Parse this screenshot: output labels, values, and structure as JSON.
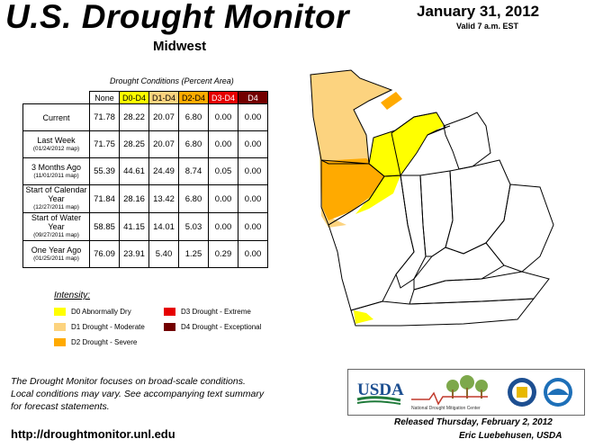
{
  "header": {
    "title": "U.S. Drought Monitor",
    "region": "Midwest",
    "date": "January 31, 2012",
    "valid": "Valid 7 a.m. EST"
  },
  "table": {
    "caption": "Drought Conditions (Percent Area)",
    "columns": [
      "None",
      "D0-D4",
      "D1-D4",
      "D2-D4",
      "D3-D4",
      "D4"
    ],
    "rows": [
      {
        "label": "Current",
        "sub": "",
        "values": [
          "71.78",
          "28.22",
          "20.07",
          "6.80",
          "0.00",
          "0.00"
        ]
      },
      {
        "label": "Last Week",
        "sub": "(01/24/2012 map)",
        "values": [
          "71.75",
          "28.25",
          "20.07",
          "6.80",
          "0.00",
          "0.00"
        ]
      },
      {
        "label": "3 Months Ago",
        "sub": "(11/01/2011 map)",
        "values": [
          "55.39",
          "44.61",
          "24.49",
          "8.74",
          "0.05",
          "0.00"
        ]
      },
      {
        "label": "Start of Calendar Year",
        "sub": "(12/27/2011 map)",
        "values": [
          "71.84",
          "28.16",
          "13.42",
          "6.80",
          "0.00",
          "0.00"
        ]
      },
      {
        "label": "Start of Water Year",
        "sub": "(09/27/2011 map)",
        "values": [
          "58.85",
          "41.15",
          "14.01",
          "5.03",
          "0.00",
          "0.00"
        ]
      },
      {
        "label": "One Year Ago",
        "sub": "(01/25/2011 map)",
        "values": [
          "76.09",
          "23.91",
          "5.40",
          "1.25",
          "0.29",
          "0.00"
        ]
      }
    ]
  },
  "legend": {
    "title": "Intensity:",
    "items": [
      {
        "label": "D0 Abnormally Dry",
        "color": "#ffff00"
      },
      {
        "label": "D1 Drought - Moderate",
        "color": "#fcd37f"
      },
      {
        "label": "D2 Drought - Severe",
        "color": "#ffaa00"
      },
      {
        "label": "D3 Drought - Extreme",
        "color": "#e60000"
      },
      {
        "label": "D4 Drought - Exceptional",
        "color": "#730000"
      }
    ]
  },
  "footer": {
    "note_lines": [
      "The Drought Monitor focuses on broad-scale conditions.",
      "Local conditions may vary. See accompanying text summary",
      "for forecast statements."
    ],
    "url": "http://droughtmonitor.unl.edu",
    "released": "Released Thursday, February 2, 2012",
    "author": "Eric Luebehusen, USDA"
  },
  "logos": {
    "usda": "USDA",
    "ndmc": "National Drought Mitigation Center"
  },
  "colors": {
    "none": "#ffffff",
    "d0": "#ffff00",
    "d1": "#fcd37f",
    "d2": "#ffaa00",
    "d3": "#e60000",
    "d4": "#730000",
    "usda_green": "#1f7a3a",
    "usda_blue": "#1d4f91"
  }
}
